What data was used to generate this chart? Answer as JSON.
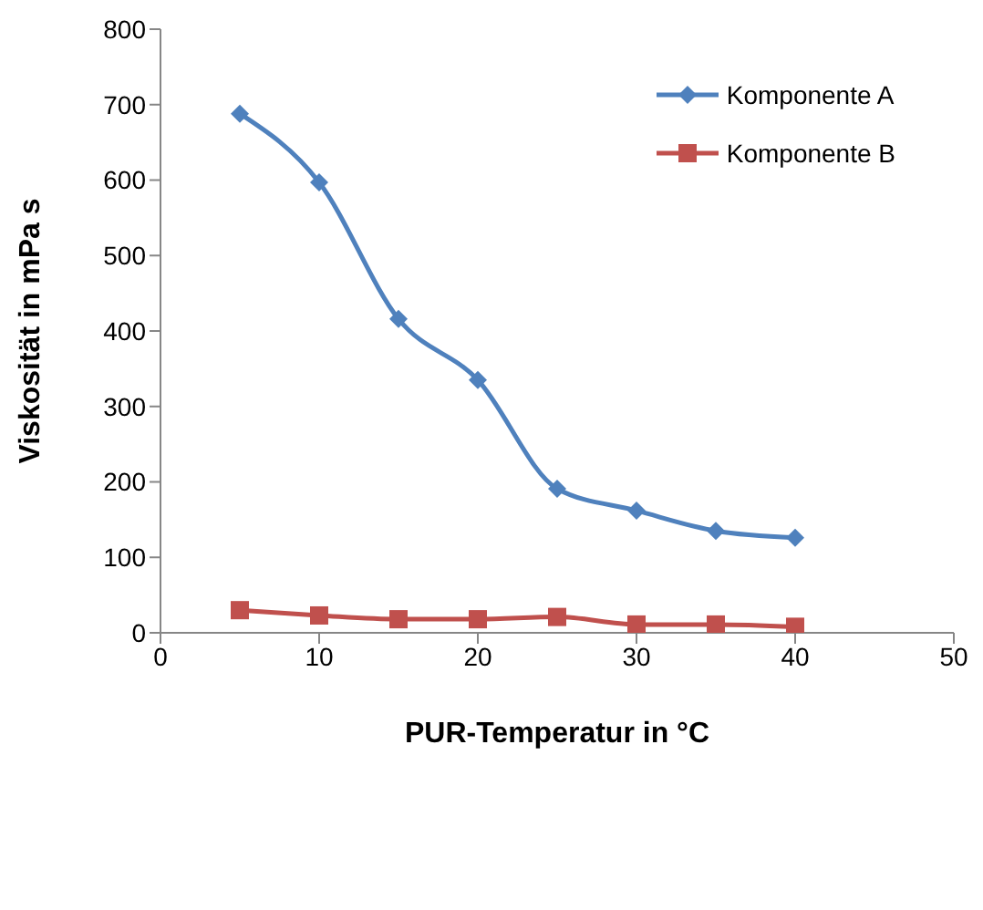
{
  "chart_data": {
    "type": "line",
    "xlabel": "PUR-Temperatur  in °C",
    "ylabel": "Viskosität in mPa s",
    "x": [
      5,
      10,
      15,
      20,
      25,
      30,
      35,
      40
    ],
    "series": [
      {
        "name": "Komponente A",
        "color": "#4f81bd",
        "marker": "diamond",
        "values": [
          688,
          597,
          416,
          335,
          191,
          162,
          135,
          126
        ]
      },
      {
        "name": "Komponente B",
        "color": "#c0504d",
        "marker": "square",
        "values": [
          30,
          23,
          18,
          18,
          21,
          11,
          11,
          8
        ]
      }
    ],
    "xlim": [
      0,
      50
    ],
    "xticks": [
      0,
      10,
      20,
      30,
      40,
      50
    ],
    "ylim": [
      0,
      800
    ],
    "yticks": [
      0,
      100,
      200,
      300,
      400,
      500,
      600,
      700,
      800
    ],
    "grid": false,
    "legend": "top right",
    "line_style": "solid"
  }
}
